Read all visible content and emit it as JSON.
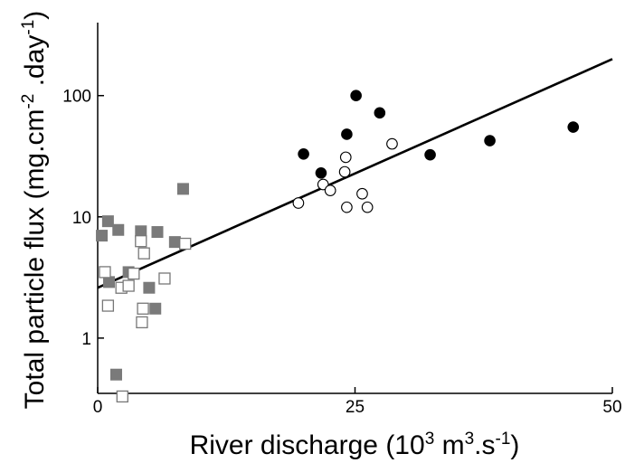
{
  "chart_data": {
    "type": "scatter",
    "title": "",
    "xlabel_parts": [
      {
        "text": "River discharge (10",
        "sup": false
      },
      {
        "text": "3",
        "sup": true
      },
      {
        "text": " m",
        "sup": false
      },
      {
        "text": "3",
        "sup": true
      },
      {
        "text": ".s",
        "sup": false
      },
      {
        "text": "-1",
        "sup": true
      },
      {
        "text": ")",
        "sup": false
      }
    ],
    "ylabel_parts": [
      {
        "text": "Total particle flux (mg.cm",
        "sup": false
      },
      {
        "text": "-2",
        "sup": true
      },
      {
        "text": " .day",
        "sup": false
      },
      {
        "text": "-1",
        "sup": true
      },
      {
        "text": ")",
        "sup": false
      }
    ],
    "xlim": [
      0,
      50
    ],
    "ylim": [
      0.35,
      400
    ],
    "yscale": "log",
    "grid": false,
    "legend": "none",
    "x_ticks": [
      0,
      25,
      50
    ],
    "x_tick_labels": [
      "0",
      "25",
      "50"
    ],
    "y_ticks": [
      1,
      10,
      100
    ],
    "y_tick_labels": [
      "1",
      "10",
      "100"
    ],
    "series": [
      {
        "marker": "square-filled",
        "color": "#7a7a7a",
        "points": [
          [
            0.4,
            7.0
          ],
          [
            1.0,
            9.2
          ],
          [
            1.1,
            2.9
          ],
          [
            1.8,
            0.5
          ],
          [
            2.0,
            7.8
          ],
          [
            3.0,
            3.5
          ],
          [
            4.2,
            7.6
          ],
          [
            5.0,
            2.6
          ],
          [
            5.6,
            1.75
          ],
          [
            5.8,
            7.5
          ],
          [
            7.5,
            6.2
          ],
          [
            8.3,
            17.0
          ]
        ]
      },
      {
        "marker": "square-open",
        "color": "#777777",
        "points": [
          [
            0.7,
            3.5
          ],
          [
            1.0,
            1.85
          ],
          [
            2.3,
            2.6
          ],
          [
            2.4,
            0.33
          ],
          [
            3.0,
            2.7
          ],
          [
            3.5,
            3.4
          ],
          [
            4.2,
            6.3
          ],
          [
            4.3,
            1.35
          ],
          [
            4.4,
            1.75
          ],
          [
            4.5,
            5.0
          ],
          [
            6.5,
            3.1
          ],
          [
            8.5,
            6.0
          ]
        ]
      },
      {
        "marker": "circle-filled",
        "color": "#000000",
        "points": [
          [
            20.0,
            33.0
          ],
          [
            21.7,
            23.0
          ],
          [
            24.2,
            48.0
          ],
          [
            25.1,
            100.0
          ],
          [
            27.4,
            72.0
          ],
          [
            32.3,
            32.5
          ],
          [
            38.1,
            42.5
          ],
          [
            46.2,
            55.0
          ]
        ]
      },
      {
        "marker": "circle-open",
        "color": "#000000",
        "points": [
          [
            19.5,
            13.0
          ],
          [
            21.9,
            18.5
          ],
          [
            22.6,
            16.5
          ],
          [
            24.0,
            23.5
          ],
          [
            24.1,
            31.0
          ],
          [
            24.2,
            12.0
          ],
          [
            25.7,
            15.5
          ],
          [
            26.2,
            12.0
          ],
          [
            28.6,
            40.0
          ]
        ]
      }
    ],
    "trendline": {
      "x": [
        0,
        50
      ],
      "y": [
        2.6,
        200
      ]
    }
  }
}
